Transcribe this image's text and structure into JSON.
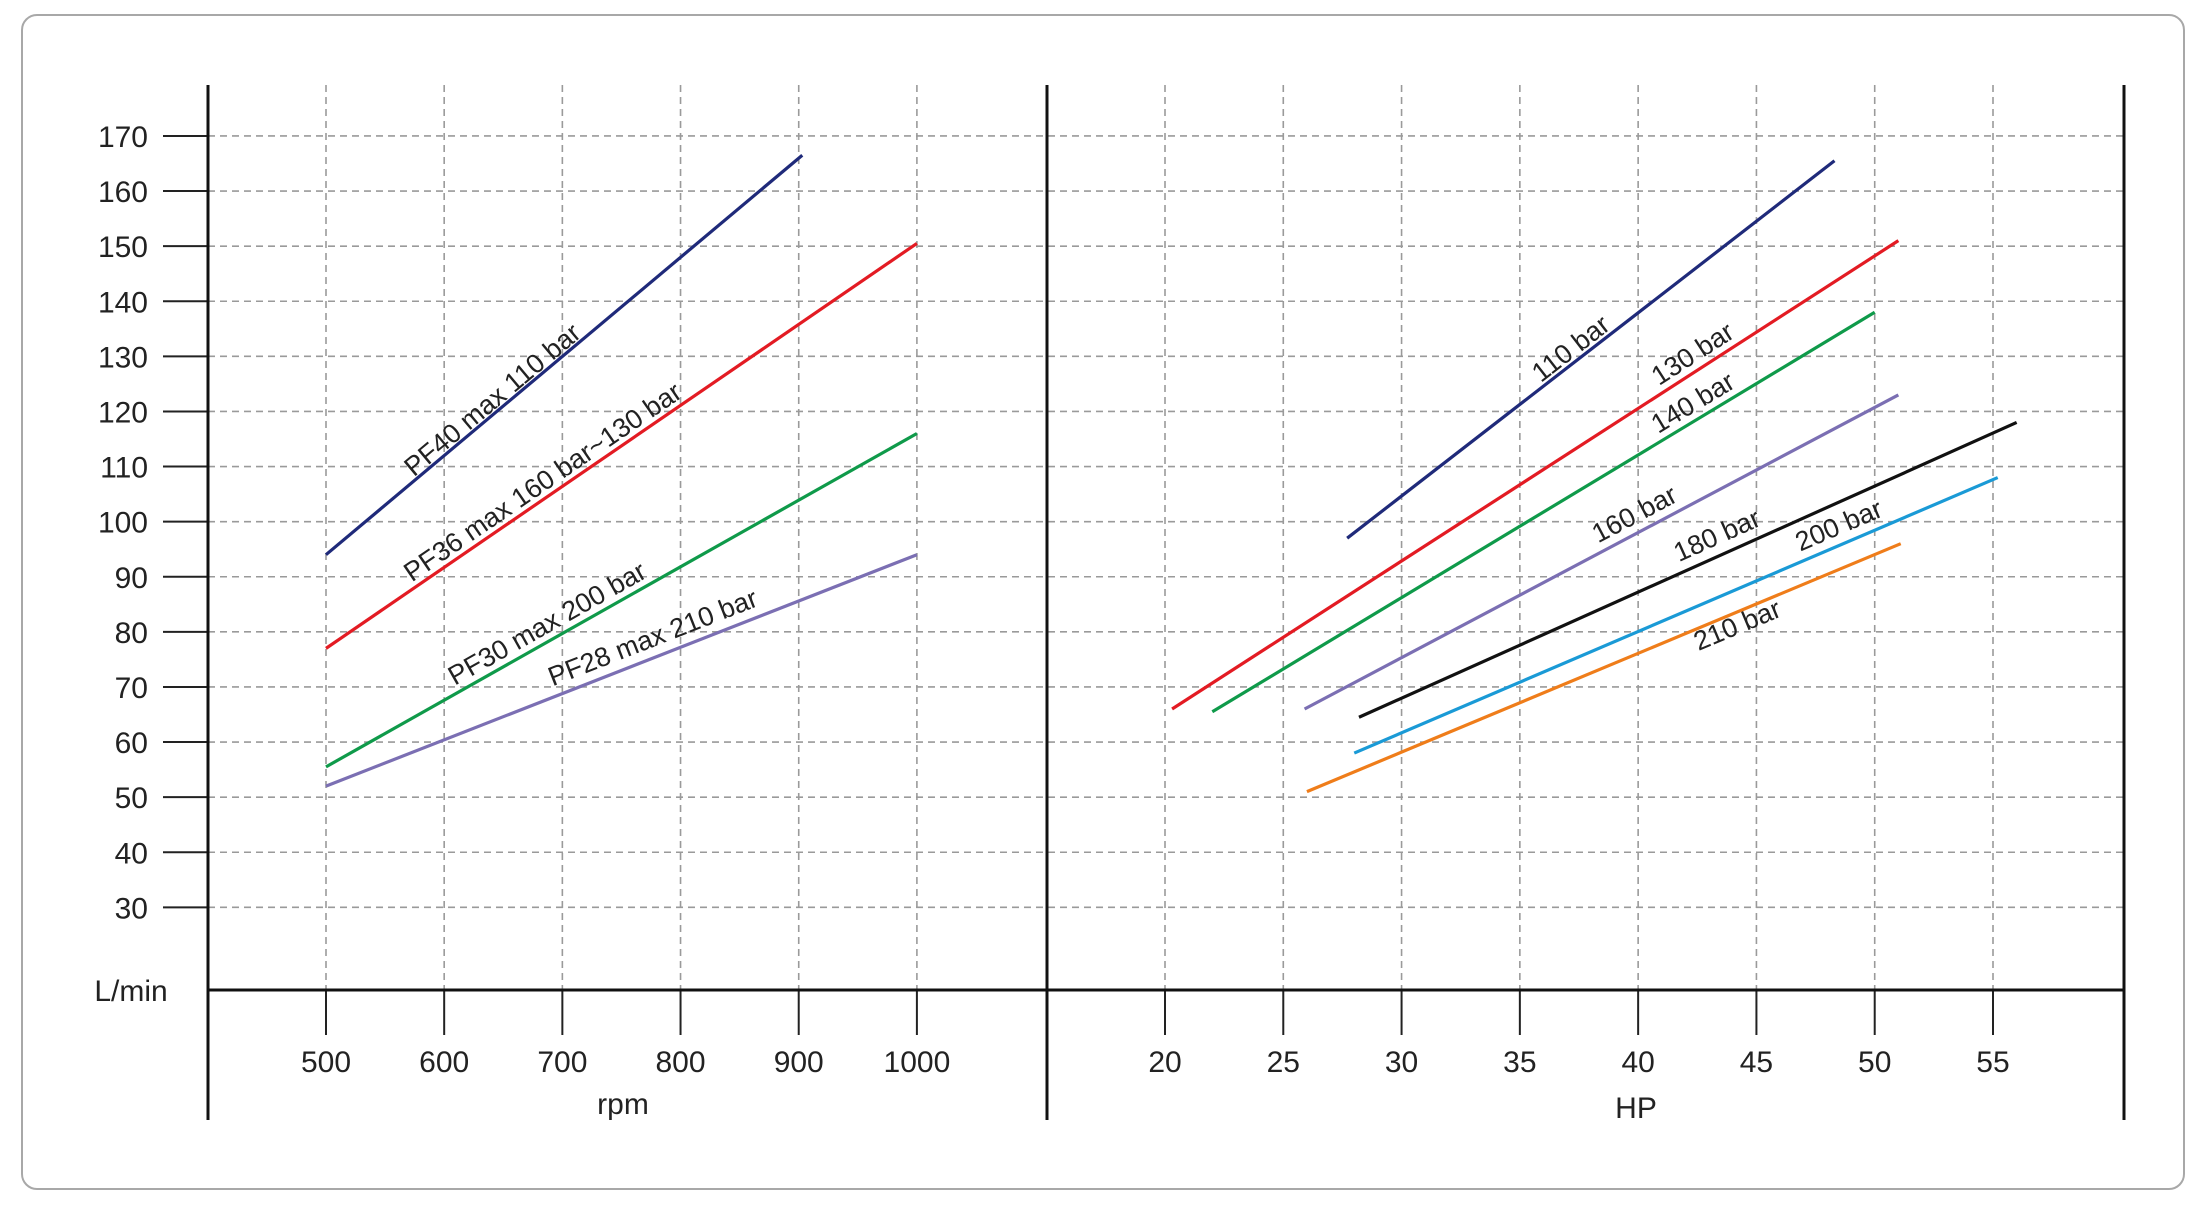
{
  "chart_data": [
    {
      "type": "line",
      "xlabel": "rpm",
      "ylabel": "L/min",
      "xlim": [
        400,
        1100
      ],
      "ylim": [
        15,
        180
      ],
      "x_ticks": [
        500,
        600,
        700,
        800,
        900,
        1000
      ],
      "y_ticks": [
        30,
        40,
        50,
        60,
        70,
        80,
        90,
        100,
        110,
        120,
        130,
        140,
        150,
        160,
        170
      ],
      "grid": true,
      "series": [
        {
          "name": "PF40 max 110 bar",
          "color": "#1f2a7a",
          "x": [
            500,
            903
          ],
          "y": [
            94,
            166.5
          ]
        },
        {
          "name": "PF36 max 160 bar~130 bar",
          "color": "#e31b23",
          "x": [
            500,
            1000
          ],
          "y": [
            77,
            150.5
          ]
        },
        {
          "name": "PF30 max 200 bar",
          "color": "#0f9a4a",
          "x": [
            500,
            1000
          ],
          "y": [
            55.5,
            116
          ]
        },
        {
          "name": "PF28 max 210 bar",
          "color": "#7b6fb3",
          "x": [
            500,
            1000
          ],
          "y": [
            52,
            94
          ]
        }
      ]
    },
    {
      "type": "line",
      "xlabel": "HP",
      "ylabel": "",
      "xlim": [
        15,
        60
      ],
      "ylim": [
        15,
        180
      ],
      "x_ticks": [
        20,
        25,
        30,
        35,
        40,
        45,
        50,
        55
      ],
      "grid": true,
      "series": [
        {
          "name": "110 bar",
          "color": "#1f2a7a",
          "x": [
            27.7,
            48.3
          ],
          "y": [
            97,
            165.5
          ]
        },
        {
          "name": "130 bar",
          "color": "#e31b23",
          "x": [
            20.3,
            51.0
          ],
          "y": [
            66,
            151
          ]
        },
        {
          "name": "140 bar",
          "color": "#0f9a4a",
          "x": [
            22.0,
            50.0
          ],
          "y": [
            65.5,
            138
          ]
        },
        {
          "name": "160 bar",
          "color": "#7b6fb3",
          "x": [
            25.9,
            51.0
          ],
          "y": [
            66,
            123
          ]
        },
        {
          "name": "180 bar",
          "color": "#111111",
          "x": [
            28.2,
            56.0
          ],
          "y": [
            64.5,
            118
          ]
        },
        {
          "name": "200 bar",
          "color": "#1a9ad6",
          "x": [
            28.0,
            55.2
          ],
          "y": [
            58,
            108
          ]
        },
        {
          "name": "210 bar",
          "color": "#ef7d1a",
          "x": [
            26.0,
            51.1
          ],
          "y": [
            51,
            96
          ]
        }
      ]
    }
  ]
}
